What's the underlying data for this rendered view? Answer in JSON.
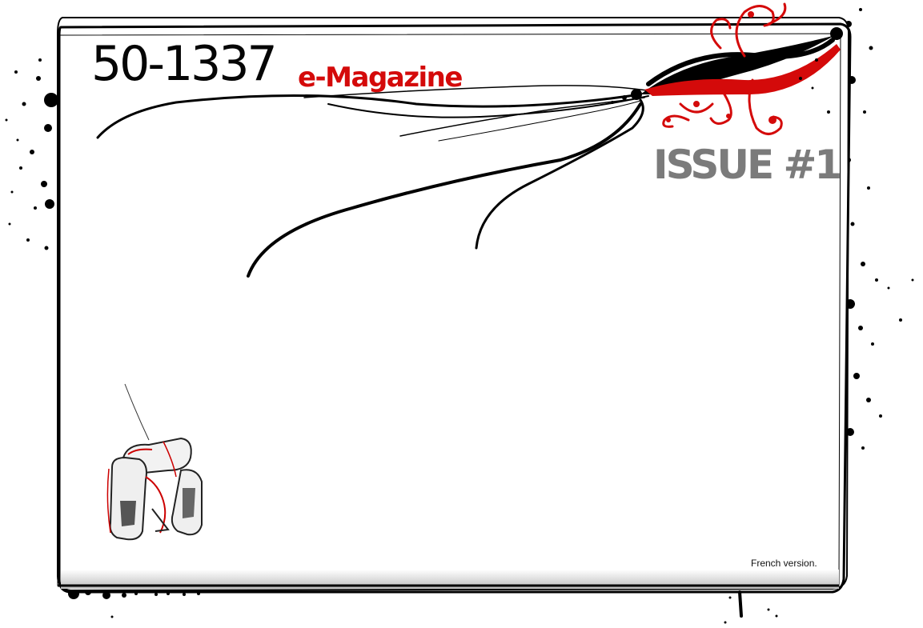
{
  "cover": {
    "title_main": "50-1337",
    "title_sub": "e-Magazine",
    "issue": "ISSUE #1",
    "note": "French version."
  },
  "colors": {
    "background": "#ffffff",
    "frame": "#000000",
    "accent_red": "#d40a0a",
    "issue_gray": "#7b7b7b"
  },
  "decorations": {
    "swirl": "black-and-red-brush-swirl",
    "splatter": "ink-splatter",
    "illustration": "robot-sketch"
  }
}
